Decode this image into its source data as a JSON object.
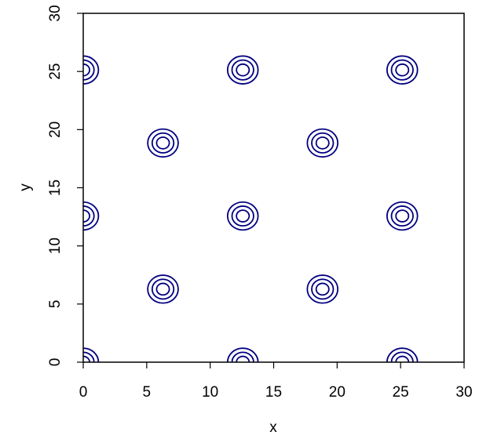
{
  "chart_data": {
    "type": "contour",
    "title": "",
    "xlabel": "x",
    "ylabel": "y",
    "xlim": [
      0,
      30
    ],
    "ylim": [
      0,
      30
    ],
    "x_ticks": [
      0,
      5,
      10,
      15,
      20,
      25,
      30
    ],
    "y_ticks": [
      0,
      5,
      10,
      15,
      20,
      25,
      30
    ],
    "x_tick_labels": [
      "0",
      "5",
      "10",
      "15",
      "20",
      "25",
      "30"
    ],
    "y_tick_labels": [
      "0",
      "5",
      "10",
      "15",
      "20",
      "25",
      "30"
    ],
    "contour_color": "#000080",
    "contour_radii": [
      1.2,
      0.85,
      0.5
    ],
    "centers": [
      {
        "x": 0,
        "y": 0
      },
      {
        "x": 12.57,
        "y": 0
      },
      {
        "x": 25.13,
        "y": 0
      },
      {
        "x": 6.28,
        "y": 6.28
      },
      {
        "x": 18.85,
        "y": 6.28
      },
      {
        "x": 0,
        "y": 12.57
      },
      {
        "x": 12.57,
        "y": 12.57
      },
      {
        "x": 25.13,
        "y": 12.57
      },
      {
        "x": 6.28,
        "y": 18.85
      },
      {
        "x": 18.85,
        "y": 18.85
      },
      {
        "x": 0,
        "y": 25.13
      },
      {
        "x": 12.57,
        "y": 25.13
      },
      {
        "x": 25.13,
        "y": 25.13
      }
    ],
    "grid": false,
    "legend": "none"
  }
}
